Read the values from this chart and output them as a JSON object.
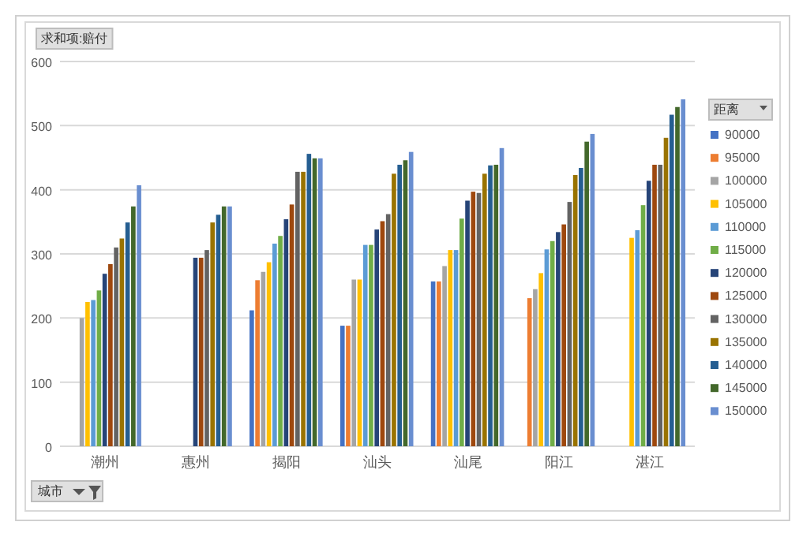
{
  "chart_data": {
    "type": "bar",
    "title": "求和项:赔付",
    "xlabel": "城市",
    "legend_title": "距离",
    "categories": [
      "潮州",
      "惠州",
      "揭阳",
      "汕头",
      "汕尾",
      "阳江",
      "湛江"
    ],
    "ylim": [
      0,
      600
    ],
    "yticks": [
      0,
      100,
      200,
      300,
      400,
      500,
      600
    ],
    "grid": "y",
    "legend": "right",
    "series": [
      {
        "name": "90000",
        "color": "#4472c4",
        "values": [
          null,
          null,
          212,
          188,
          257,
          null,
          null
        ]
      },
      {
        "name": "95000",
        "color": "#ed7d31",
        "values": [
          null,
          null,
          259,
          188,
          257,
          231,
          null
        ]
      },
      {
        "name": "100000",
        "color": "#a5a5a5",
        "values": [
          200,
          null,
          272,
          260,
          281,
          245,
          null
        ]
      },
      {
        "name": "105000",
        "color": "#ffc000",
        "values": [
          225,
          null,
          287,
          260,
          306,
          270,
          325
        ]
      },
      {
        "name": "110000",
        "color": "#5b9bd5",
        "values": [
          228,
          null,
          316,
          314,
          306,
          307,
          337
        ]
      },
      {
        "name": "115000",
        "color": "#70ad47",
        "values": [
          243,
          null,
          328,
          314,
          355,
          320,
          376
        ]
      },
      {
        "name": "120000",
        "color": "#264478",
        "values": [
          269,
          294,
          354,
          338,
          383,
          334,
          414
        ]
      },
      {
        "name": "125000",
        "color": "#9e480e",
        "values": [
          284,
          294,
          377,
          351,
          397,
          346,
          439
        ]
      },
      {
        "name": "130000",
        "color": "#636363",
        "values": [
          310,
          306,
          428,
          362,
          395,
          381,
          439
        ]
      },
      {
        "name": "135000",
        "color": "#997300",
        "values": [
          324,
          349,
          428,
          425,
          425,
          423,
          481
        ]
      },
      {
        "name": "140000",
        "color": "#255e91",
        "values": [
          349,
          361,
          456,
          439,
          438,
          434,
          517
        ]
      },
      {
        "name": "145000",
        "color": "#43682b",
        "values": [
          374,
          374,
          449,
          446,
          439,
          475,
          529
        ]
      },
      {
        "name": "150000",
        "color": "#698ed0",
        "values": [
          407,
          374,
          449,
          459,
          465,
          487,
          541
        ]
      }
    ]
  }
}
